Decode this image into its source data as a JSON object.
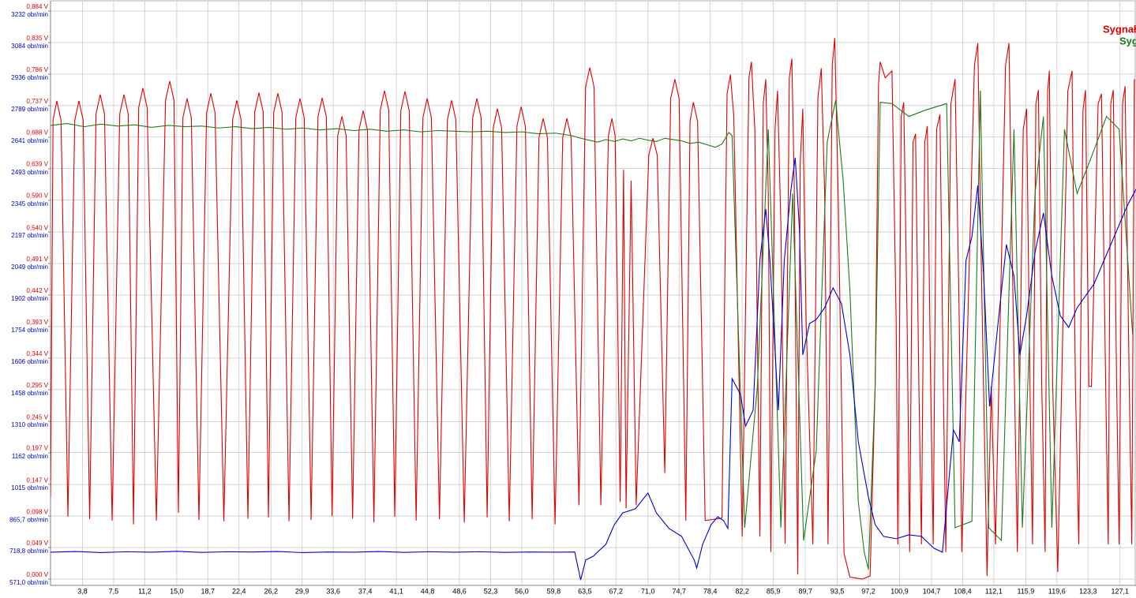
{
  "chart_data": {
    "type": "line",
    "grid": true,
    "legend": "top-right",
    "xlim": [
      0,
      129
    ],
    "xticks": [
      {
        "value": 3.8,
        "label": "3,8"
      },
      {
        "value": 7.5,
        "label": "7,5"
      },
      {
        "value": 11.2,
        "label": "11,2"
      },
      {
        "value": 15.0,
        "label": "15,0"
      },
      {
        "value": 18.7,
        "label": "18,7"
      },
      {
        "value": 22.4,
        "label": "22,4"
      },
      {
        "value": 26.2,
        "label": "26,2"
      },
      {
        "value": 29.9,
        "label": "29,9"
      },
      {
        "value": 33.6,
        "label": "33,6"
      },
      {
        "value": 37.4,
        "label": "37,4"
      },
      {
        "value": 41.1,
        "label": "41,1"
      },
      {
        "value": 44.8,
        "label": "44,8"
      },
      {
        "value": 48.6,
        "label": "48,6"
      },
      {
        "value": 52.3,
        "label": "52,3"
      },
      {
        "value": 56.0,
        "label": "56,0"
      },
      {
        "value": 59.8,
        "label": "59,8"
      },
      {
        "value": 63.5,
        "label": "63,5"
      },
      {
        "value": 67.2,
        "label": "67,2"
      },
      {
        "value": 71.0,
        "label": "71,0"
      },
      {
        "value": 74.7,
        "label": "74,7"
      },
      {
        "value": 78.4,
        "label": "78,4"
      },
      {
        "value": 82.2,
        "label": "82,2"
      },
      {
        "value": 85.9,
        "label": "85,9"
      },
      {
        "value": 89.7,
        "label": "89,7"
      },
      {
        "value": 93.5,
        "label": "93,5"
      },
      {
        "value": 97.2,
        "label": "97,2"
      },
      {
        "value": 100.9,
        "label": "100,9"
      },
      {
        "value": 104.7,
        "label": "104,7"
      },
      {
        "value": 108.4,
        "label": "108,4"
      },
      {
        "value": 112.1,
        "label": "112,1"
      },
      {
        "value": 115.9,
        "label": "115,9"
      },
      {
        "value": 119.6,
        "label": "119,6"
      },
      {
        "value": 123.3,
        "label": "123,3"
      },
      {
        "value": 127.1,
        "label": "127,1"
      }
    ],
    "ylim": [
      0,
      0.884
    ],
    "yticks": [
      {
        "value": 0.884,
        "label": "0,884 V"
      },
      {
        "value": 0.835,
        "label": "0,835 V"
      },
      {
        "value": 0.786,
        "label": "0,786 V"
      },
      {
        "value": 0.737,
        "label": "0,737 V"
      },
      {
        "value": 0.688,
        "label": "0,688 V"
      },
      {
        "value": 0.639,
        "label": "0,639 V"
      },
      {
        "value": 0.59,
        "label": "0,590 V"
      },
      {
        "value": 0.54,
        "label": "0,540 V"
      },
      {
        "value": 0.491,
        "label": "0,491 V"
      },
      {
        "value": 0.442,
        "label": "0,442 V"
      },
      {
        "value": 0.393,
        "label": "0,393 V"
      },
      {
        "value": 0.344,
        "label": "0,344 V"
      },
      {
        "value": 0.295,
        "label": "0,295 V"
      },
      {
        "value": 0.245,
        "label": "0,245 V"
      },
      {
        "value": 0.197,
        "label": "0,197 V"
      },
      {
        "value": 0.147,
        "label": "0,147 V"
      },
      {
        "value": 0.098,
        "label": "0,098 V"
      },
      {
        "value": 0.049,
        "label": "0,049 V"
      },
      {
        "value": 0.0,
        "label": "0,000 V"
      }
    ],
    "y2lim": [
      571,
      3232
    ],
    "y2ticks": [
      {
        "value": 3232,
        "label": "3232 obr/min"
      },
      {
        "value": 3084,
        "label": "3084 obr/min"
      },
      {
        "value": 2936,
        "label": "2936 obr/min"
      },
      {
        "value": 2789,
        "label": "2789 obr/min"
      },
      {
        "value": 2641,
        "label": "2641 obr/min"
      },
      {
        "value": 2493,
        "label": "2493 obr/min"
      },
      {
        "value": 2345,
        "label": "2345 obr/min"
      },
      {
        "value": 2197,
        "label": "2197 obr/min"
      },
      {
        "value": 2049,
        "label": "2049 obr/min"
      },
      {
        "value": 1902,
        "label": "1902 obr/min"
      },
      {
        "value": 1754,
        "label": "1754 obr/min"
      },
      {
        "value": 1606,
        "label": "1606 obr/min"
      },
      {
        "value": 1458,
        "label": "1458 obr/min"
      },
      {
        "value": 1310,
        "label": "1310 obr/min"
      },
      {
        "value": 1162,
        "label": "1162 obr/min"
      },
      {
        "value": 1015,
        "label": "1015 obr/min"
      },
      {
        "value": 865.7,
        "label": "865,7 obr/min"
      },
      {
        "value": 718.8,
        "label": "718,8 obr/min"
      },
      {
        "value": 571.0,
        "label": "571,0 obr/min"
      }
    ],
    "series": [
      {
        "name": "Sygnał",
        "color": "#e00000",
        "x": [
          0,
          0.3,
          0.75,
          1.25,
          2.07,
          2.88,
          3.38,
          3.88,
          4.65,
          5.41,
          5.91,
          6.41,
          7.32,
          8.23,
          8.73,
          9.23,
          9.86,
          10.48,
          10.98,
          11.48,
          12.58,
          13.67,
          14.17,
          14.67,
          15.2,
          15.73,
          16.23,
          16.73,
          17.64,
          18.55,
          19.05,
          19.55,
          20.6,
          21.64,
          22.14,
          22.64,
          23.46,
          24.27,
          24.77,
          25.27,
          25.9,
          26.52,
          27.02,
          27.52,
          28.34,
          29.15,
          29.65,
          30.15,
          30.97,
          31.78,
          32.28,
          32.78,
          33.46,
          34.13,
          34.63,
          35.13,
          35.9,
          36.66,
          37.16,
          37.66,
          38.43,
          39.19,
          39.69,
          40.19,
          40.91,
          41.63,
          42.13,
          42.63,
          43.45,
          44.26,
          44.76,
          45.26,
          46.22,
          47.17,
          47.67,
          48.17,
          49.17,
          50.17,
          50.67,
          51.17,
          51.89,
          52.61,
          53.11,
          53.61,
          54.52,
          55.43,
          55.93,
          56.43,
          57.24,
          58.05,
          58.55,
          59.05,
          59.96,
          60.87,
          61.37,
          61.87,
          62.8,
          63.59,
          64.09,
          64.59,
          65.4,
          66.3,
          66.72,
          67.1,
          67.7,
          68.1,
          68.4,
          69.0,
          69.6,
          71.1,
          71.6,
          72.1,
          73.0,
          73.7,
          74.2,
          74.7,
          75.5,
          76.0,
          76.4,
          76.9,
          77.8,
          79.8,
          80.4,
          80.8,
          81.2,
          82.2,
          83.0,
          83.3,
          83.7,
          84.3,
          84.7,
          85.0,
          85.3,
          85.6,
          86.1,
          86.4,
          86.8,
          87.3,
          87.8,
          88.1,
          88.4,
          88.8,
          89.1,
          89.4,
          89.8,
          90.6,
          91.2,
          91.6,
          92.0,
          92.4,
          92.9,
          93.2,
          93.6,
          94.3,
          95.0,
          96.5,
          97.4,
          98.0,
          98.4,
          98.6,
          99.2,
          100.0,
          100.5,
          100.7,
          101.1,
          101.4,
          101.8,
          102.1,
          102.5,
          102.8,
          103.2,
          103.5,
          103.9,
          104.2,
          104.6,
          104.9,
          105.3,
          105.7,
          106.1,
          106.4,
          107.0,
          107.5,
          108.0,
          108.3,
          109.8,
          110.2,
          110.6,
          111.3,
          111.8,
          112.3,
          113.5,
          113.9,
          114.3,
          114.9,
          115.6,
          116.0,
          116.4,
          116.7,
          117.1,
          117.4,
          117.8,
          118.2,
          118.5,
          118.7,
          119.1,
          119.7,
          120.9,
          121.4,
          121.8,
          122.2,
          122.7,
          123.0,
          123.4,
          123.7,
          124.5,
          124.9,
          125.4,
          125.7,
          126.0,
          126.3,
          126.7,
          127.0,
          127.4,
          127.7,
          128.2,
          128.5,
          128.8
        ],
        "values": [
          0.128,
          0.714,
          0.744,
          0.714,
          0.097,
          0.714,
          0.744,
          0.714,
          0.093,
          0.724,
          0.754,
          0.724,
          0.091,
          0.724,
          0.754,
          0.724,
          0.085,
          0.734,
          0.764,
          0.734,
          0.091,
          0.745,
          0.775,
          0.745,
          0.103,
          0.718,
          0.748,
          0.718,
          0.092,
          0.726,
          0.756,
          0.726,
          0.09,
          0.715,
          0.745,
          0.715,
          0.094,
          0.727,
          0.757,
          0.727,
          0.096,
          0.726,
          0.756,
          0.726,
          0.09,
          0.718,
          0.748,
          0.718,
          0.092,
          0.719,
          0.749,
          0.719,
          0.098,
          0.69,
          0.72,
          0.69,
          0.094,
          0.699,
          0.729,
          0.699,
          0.088,
          0.73,
          0.76,
          0.73,
          0.097,
          0.729,
          0.759,
          0.729,
          0.091,
          0.718,
          0.748,
          0.718,
          0.093,
          0.715,
          0.745,
          0.715,
          0.088,
          0.718,
          0.748,
          0.718,
          0.096,
          0.702,
          0.732,
          0.702,
          0.09,
          0.705,
          0.735,
          0.705,
          0.093,
          0.687,
          0.717,
          0.687,
          0.085,
          0.687,
          0.717,
          0.687,
          0.115,
          0.766,
          0.796,
          0.766,
          0.115,
          0.69,
          0.717,
          0.69,
          0.12,
          0.637,
          0.11,
          0.62,
          0.115,
          0.66,
          0.686,
          0.66,
          0.165,
          0.748,
          0.778,
          0.748,
          0.091,
          0.712,
          0.742,
          0.712,
          0.091,
          0.095,
          0.755,
          0.785,
          0.72,
          0.066,
          0.78,
          0.805,
          0.7,
          0.066,
          0.74,
          0.778,
          0.6,
          0.042,
          0.7,
          0.76,
          0.55,
          0.055,
          0.78,
          0.81,
          0.6,
          0.007,
          0.65,
          0.732,
          0.4,
          0.054,
          0.75,
          0.795,
          0.6,
          0.054,
          0.8,
          0.842,
          0.6,
          0.04,
          0.003,
          0.0,
          0.005,
          0.3,
          0.77,
          0.805,
          0.78,
          0.791,
          0.4,
          0.054,
          0.72,
          0.742,
          0.4,
          0.042,
          0.68,
          0.693,
          0.3,
          0.054,
          0.68,
          0.705,
          0.3,
          0.054,
          0.7,
          0.723,
          0.3,
          0.042,
          0.74,
          0.778,
          0.4,
          0.042,
          0.8,
          0.834,
          0.5,
          0.005,
          0.3,
          0.054,
          0.8,
          0.834,
          0.5,
          0.042,
          0.7,
          0.732,
          0.3,
          0.054,
          0.74,
          0.761,
          0.3,
          0.042,
          0.76,
          0.791,
          0.3,
          0.011,
          0.76,
          0.791,
          0.3,
          0.054,
          0.73,
          0.761,
          0.3,
          0.3,
          0.74,
          0.755,
          0.3,
          0.054,
          0.74,
          0.761,
          0.3,
          0.054,
          0.74,
          0.767,
          0.3,
          0.054,
          0.778
        ]
      },
      {
        "name": "Syg",
        "color": "#1e7a1e",
        "x": [
          0,
          2,
          4,
          6,
          8,
          10,
          12,
          14,
          16,
          18,
          20,
          22,
          24,
          26,
          28,
          30,
          32,
          34,
          36,
          38,
          40,
          42,
          44,
          46,
          48,
          50,
          52,
          54,
          56,
          58,
          60,
          62,
          63,
          64,
          65,
          66,
          67,
          68,
          69,
          70,
          71,
          72,
          73,
          74,
          75,
          76,
          77,
          78,
          79,
          79.8,
          80.6,
          81.0,
          82.5,
          84.0,
          85.3,
          86.8,
          88.2,
          89.5,
          91.0,
          92.3,
          93.3,
          94.2,
          95.0,
          96.0,
          96.7,
          97.2,
          98.0,
          98.6,
          100.0,
          102.0,
          104.0,
          106.5,
          107.5,
          109.5,
          110.5,
          111.5,
          113.0,
          114.5,
          115.5,
          117.0,
          118.0,
          119.0,
          120.5,
          122.0,
          123.5,
          125.5,
          127.0,
          128.6
        ],
        "values": [
          0.706,
          0.709,
          0.704,
          0.708,
          0.705,
          0.707,
          0.703,
          0.706,
          0.704,
          0.705,
          0.702,
          0.704,
          0.701,
          0.703,
          0.7,
          0.702,
          0.699,
          0.701,
          0.698,
          0.7,
          0.697,
          0.699,
          0.696,
          0.698,
          0.697,
          0.696,
          0.697,
          0.695,
          0.696,
          0.693,
          0.694,
          0.69,
          0.686,
          0.683,
          0.68,
          0.684,
          0.681,
          0.685,
          0.682,
          0.686,
          0.683,
          0.681,
          0.686,
          0.684,
          0.682,
          0.678,
          0.68,
          0.676,
          0.672,
          0.677,
          0.695,
          0.69,
          0.08,
          0.3,
          0.7,
          0.08,
          0.6,
          0.06,
          0.2,
          0.68,
          0.745,
          0.62,
          0.45,
          0.12,
          0.042,
          0.015,
          0.3,
          0.742,
          0.74,
          0.72,
          0.73,
          0.74,
          0.08,
          0.09,
          0.76,
          0.08,
          0.06,
          0.7,
          0.08,
          0.6,
          0.72,
          0.08,
          0.7,
          0.6,
          0.65,
          0.72,
          0.7,
          0.38
        ]
      },
      {
        "color": "#0000dc",
        "axis": "y2",
        "x": [
          0,
          3,
          6,
          9,
          12,
          15,
          18,
          21,
          24,
          27,
          30,
          33,
          36,
          39,
          42,
          45,
          48,
          51,
          54,
          57,
          60,
          62.3,
          63.0,
          63.6,
          64.5,
          66,
          67,
          68,
          69.5,
          71.0,
          72,
          73.5,
          75,
          76.5,
          76.8,
          77.5,
          78.5,
          79.3,
          80.0,
          80.5,
          81,
          82,
          82.6,
          83.5,
          84.3,
          85,
          85.5,
          86.5,
          87.2,
          88,
          88.5,
          89.0,
          89.4,
          90.2,
          91,
          92,
          93,
          94,
          95,
          96,
          97.2,
          98,
          99,
          100.5,
          102,
          103.5,
          105,
          106,
          107.3,
          108,
          108.8,
          109.5,
          110.2,
          110.9,
          111.6,
          112.6,
          113.6,
          114.5,
          115.2,
          116,
          117,
          118,
          119,
          120,
          121,
          122,
          124,
          126,
          128,
          129
        ],
        "values": [
          697,
          700,
          695,
          699,
          697,
          701,
          696,
          699,
          698,
          700,
          695,
          698,
          697,
          700,
          696,
          699,
          697,
          699,
          696,
          698,
          697,
          698,
          567,
          660,
          678,
          734,
          826,
          881,
          900,
          974,
          881,
          808,
          771,
          660,
          623,
          734,
          826,
          863,
          844,
          808,
          1510,
          1436,
          1288,
          1362,
          2064,
          2304,
          2064,
          1362,
          2064,
          2397,
          2545,
          2212,
          1621,
          1768,
          1787,
          1842,
          1935,
          1861,
          1621,
          1214,
          955,
          826,
          771,
          760,
          778,
          771,
          715,
          697,
          1270,
          1214,
          2064,
          2175,
          2415,
          1990,
          1380,
          1768,
          2138,
          1990,
          1621,
          1805,
          2101,
          2286,
          1990,
          1805,
          1750,
          1842,
          1953,
          2138,
          2323,
          2397
        ]
      }
    ]
  }
}
